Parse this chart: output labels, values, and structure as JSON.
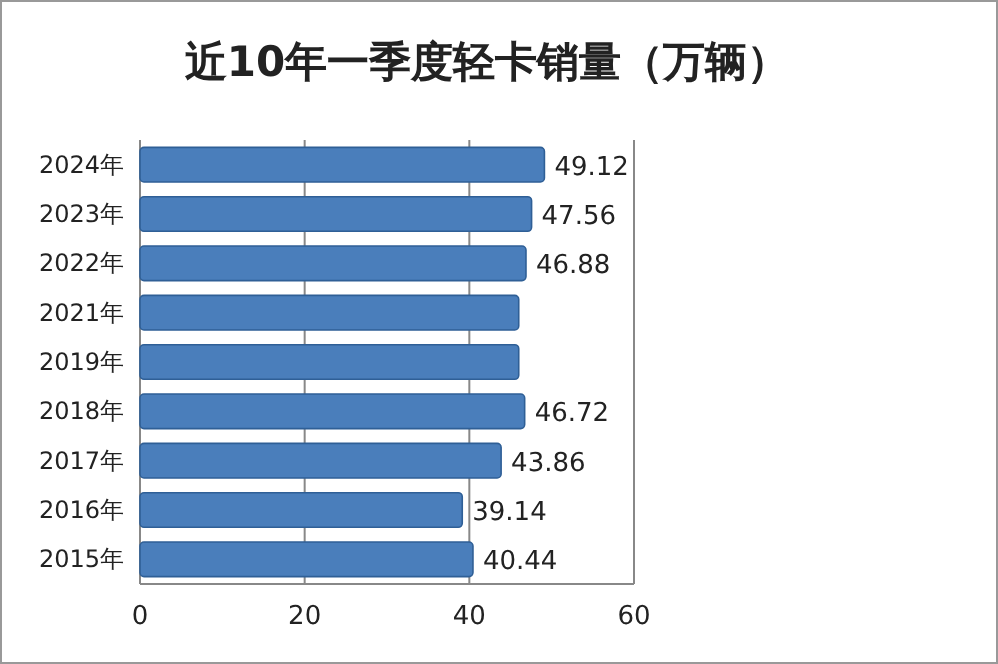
{
  "chart_data": {
    "type": "bar",
    "orientation": "horizontal",
    "title": "近10年一季度轻卡销量（万辆）",
    "categories": [
      "2024年",
      "2023年",
      "2022年",
      "2021年",
      "2019年",
      "2018年",
      "2017年",
      "2016年",
      "2015年"
    ],
    "values": [
      49.12,
      47.56,
      46.88,
      46,
      46,
      46.72,
      43.86,
      39.14,
      40.44
    ],
    "value_labels": [
      "49.12",
      "47.56",
      "46.88",
      null,
      null,
      "46.72",
      "43.86",
      "39.14",
      "40.44"
    ],
    "color": "#4a7ebb",
    "xlim": [
      0,
      60
    ],
    "xticks": [
      0,
      20,
      40,
      60
    ],
    "grid": "x"
  }
}
